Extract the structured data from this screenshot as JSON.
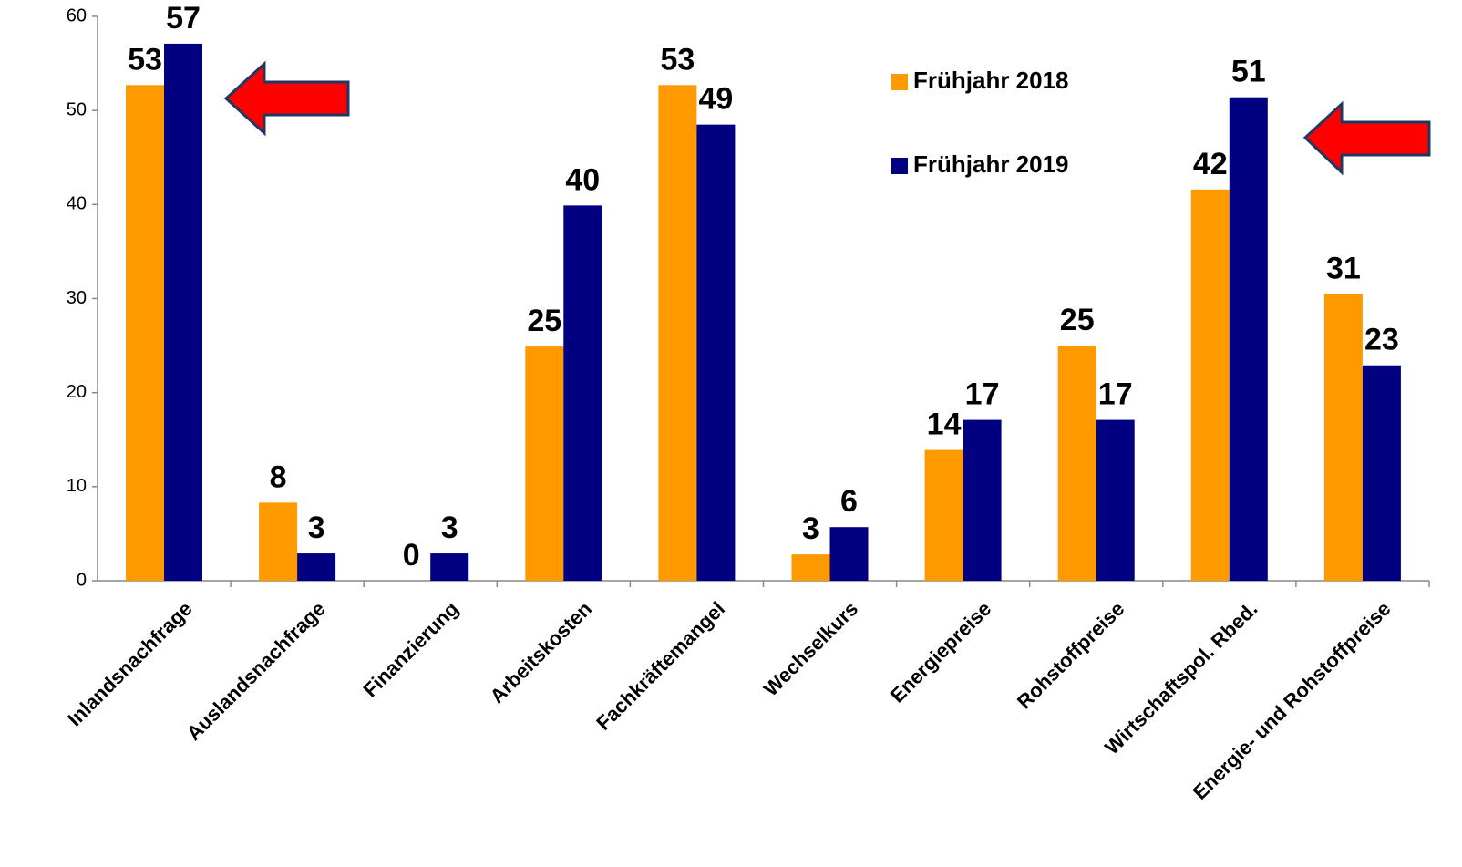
{
  "chart_data": {
    "type": "bar",
    "categories": [
      "Inlandsnachfrage",
      "Auslandsnachfrage",
      "Finanzierung",
      "Arbeitskosten",
      "Fachkräftemangel",
      "Wechselkurs",
      "Energiepreise",
      "Rohstoffpreise",
      "Wirtschaftspol. Rbed.",
      "Energie- und Rohstoffpreise"
    ],
    "series": [
      {
        "name": "Frühjahr 2018",
        "color": "#ff9900",
        "values": [
          52.7,
          8.3,
          0,
          24.9,
          52.7,
          2.8,
          13.9,
          25,
          41.6,
          30.5
        ],
        "value_labels": [
          "53",
          "8",
          "0",
          "25",
          "53",
          "3",
          "14",
          "25",
          "42",
          "31"
        ]
      },
      {
        "name": "Frühjahr 2019",
        "color": "#000080",
        "values": [
          57.1,
          2.9,
          2.9,
          39.9,
          48.5,
          5.7,
          17.1,
          17.1,
          51.4,
          22.9
        ],
        "value_labels": [
          "57",
          "3",
          "3",
          "40",
          "49",
          "6",
          "17",
          "17",
          "51",
          "23"
        ]
      }
    ],
    "ylim": [
      0,
      60
    ],
    "yticks": [
      0,
      10,
      20,
      30,
      40,
      50,
      60
    ],
    "legend": "upper right"
  }
}
